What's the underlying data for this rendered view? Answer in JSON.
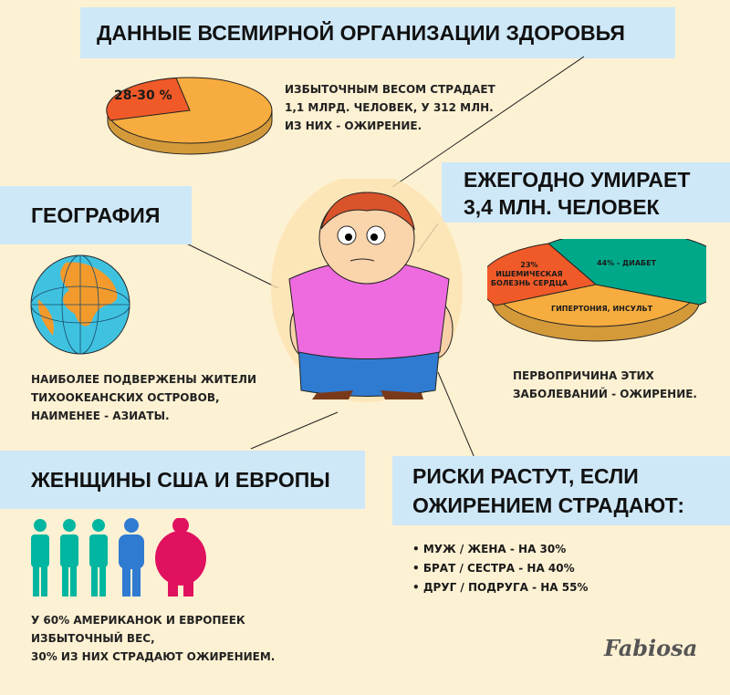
{
  "title": "Данные всемирной организации здоровья",
  "who": {
    "pie_label": "28-30 %",
    "text": [
      "Избыточным весом страдает",
      "1,1 млрд. человек, у 312 млн.",
      "из них - ожирение."
    ]
  },
  "deaths": {
    "title": [
      "Ежегодно умирает",
      "3,4 млн. человек"
    ],
    "pie": {
      "diabetes": "44% - диабет",
      "heart": [
        "23%",
        "ишемическая",
        "болезнь сердца"
      ],
      "hyper": "гипертония, инсульт"
    },
    "text": [
      "Первопричина этих",
      "заболеваний - ожирение."
    ]
  },
  "geo": {
    "title": "География",
    "text": [
      "Наиболее подвержены жители",
      "тихоокеанских островов,",
      "наименее - азиаты."
    ]
  },
  "women": {
    "title": "Женщины США и Европы",
    "text": [
      "У 60% американок и европеек",
      "избыточный вес,",
      "30% из них страдают ожирением."
    ]
  },
  "risks": {
    "title": [
      "Риски растут, если",
      "ожирением страдают:"
    ],
    "items": [
      "муж / жена - на 30%",
      "брат / сестра - на 40%",
      "друг / подруга - на 55%"
    ]
  },
  "logo": "Fabiosa",
  "chart_data": [
    {
      "type": "pie",
      "slices": [
        {
          "label": "28-30 %",
          "value": 29
        },
        {
          "label": "",
          "value": 71
        }
      ]
    },
    {
      "type": "pie",
      "slices": [
        {
          "label": "44% - диабет",
          "value": 44
        },
        {
          "label": "23% ишемическая болезнь сердца",
          "value": 23
        },
        {
          "label": "гипертония, инсульт",
          "value": 33
        }
      ]
    }
  ],
  "colors": {
    "background": "#fdf1d3",
    "banner": "#cfe8f8",
    "orange": "#f6ac3f",
    "red": "#f05a28",
    "teal": "#00a88a",
    "blue": "#2f7bd2",
    "pink": "#e0115f"
  }
}
